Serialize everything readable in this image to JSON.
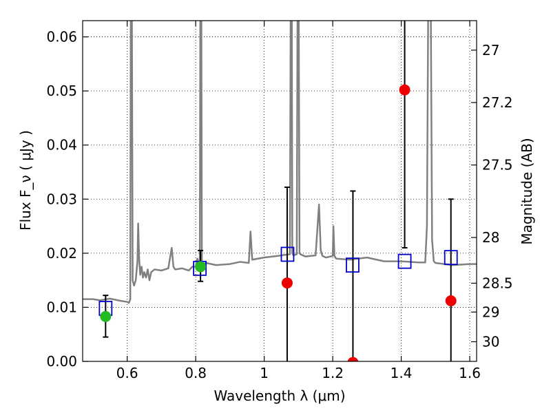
{
  "chart_data": {
    "type": "scatter",
    "xlabel": "Wavelength  λ (μm)",
    "ylabel": "Flux  F_ν  ( μJy )",
    "y2label": "Magnitude (AB)",
    "xlim": [
      0.47,
      1.62
    ],
    "ylim": [
      0.0,
      0.063
    ],
    "grid": true,
    "x_ticks": [
      0.6,
      0.8,
      1.0,
      1.2,
      1.4,
      1.6
    ],
    "x_tick_labels": [
      "0.6",
      "0.8",
      "1",
      "1.2",
      "1.4",
      "1.6"
    ],
    "y_ticks": [
      0.0,
      0.01,
      0.02,
      0.03,
      0.04,
      0.05,
      0.06
    ],
    "y_tick_labels": [
      "0.00",
      "0.01",
      "0.02",
      "0.03",
      "0.04",
      "0.05",
      "0.06"
    ],
    "y2_ticks": [
      27,
      27.2,
      27.5,
      28,
      28.5,
      29,
      30
    ],
    "y2_tick_labels": [
      "27",
      "27.2",
      "27.5",
      "28",
      "28.5",
      "29",
      "30"
    ],
    "colors": {
      "spectrum": "#808080",
      "model_flux": "#0000cc",
      "detection": "#22bb22",
      "non_detection": "#ee0000",
      "errorbar": "#000000"
    },
    "spectrum": {
      "x": [
        0.47,
        0.5,
        0.52,
        0.55,
        0.58,
        0.6,
        0.605,
        0.609,
        0.611,
        0.613,
        0.616,
        0.62,
        0.625,
        0.63,
        0.632,
        0.635,
        0.638,
        0.642,
        0.646,
        0.65,
        0.655,
        0.66,
        0.665,
        0.67,
        0.68,
        0.7,
        0.72,
        0.73,
        0.735,
        0.74,
        0.76,
        0.78,
        0.79,
        0.8,
        0.805,
        0.812,
        0.814,
        0.816,
        0.818,
        0.82,
        0.822,
        0.83,
        0.86,
        0.9,
        0.93,
        0.955,
        0.96,
        0.965,
        1.0,
        1.04,
        1.06,
        1.075,
        1.078,
        1.08,
        1.082,
        1.085,
        1.095,
        1.098,
        1.1,
        1.103,
        1.106,
        1.12,
        1.15,
        1.16,
        1.165,
        1.17,
        1.18,
        1.2,
        1.202,
        1.205,
        1.21,
        1.25,
        1.3,
        1.35,
        1.4,
        1.45,
        1.47,
        1.475,
        1.48,
        1.485,
        1.49,
        1.495,
        1.5,
        1.55,
        1.6,
        1.62
      ],
      "y": [
        0.0115,
        0.0115,
        0.0113,
        0.0116,
        0.0112,
        0.011,
        0.0108,
        0.0115,
        0.08,
        0.08,
        0.015,
        0.014,
        0.015,
        0.0185,
        0.0255,
        0.019,
        0.016,
        0.0175,
        0.0155,
        0.0165,
        0.0155,
        0.017,
        0.015,
        0.0165,
        0.017,
        0.0168,
        0.0172,
        0.021,
        0.0175,
        0.017,
        0.0172,
        0.0168,
        0.0175,
        0.0175,
        0.019,
        0.0175,
        0.08,
        0.08,
        0.018,
        0.0175,
        0.0178,
        0.0182,
        0.0178,
        0.018,
        0.0184,
        0.0182,
        0.024,
        0.0188,
        0.0192,
        0.0195,
        0.0197,
        0.0198,
        0.08,
        0.08,
        0.02,
        0.0196,
        0.0198,
        0.08,
        0.08,
        0.02,
        0.0198,
        0.0194,
        0.0196,
        0.029,
        0.0205,
        0.0195,
        0.0192,
        0.0195,
        0.025,
        0.0195,
        0.019,
        0.0188,
        0.0192,
        0.0185,
        0.0185,
        0.0183,
        0.0183,
        0.025,
        0.08,
        0.08,
        0.0225,
        0.0185,
        0.0182,
        0.0178,
        0.018,
        0.018
      ]
    },
    "model_flux": [
      {
        "x": 0.537,
        "y": 0.0098
      },
      {
        "x": 0.812,
        "y": 0.0172
      },
      {
        "x": 1.068,
        "y": 0.0198
      },
      {
        "x": 1.258,
        "y": 0.0178
      },
      {
        "x": 1.41,
        "y": 0.0185
      },
      {
        "x": 1.545,
        "y": 0.0192
      }
    ],
    "observed": [
      {
        "x": 0.537,
        "y": 0.0083,
        "err_lo": 0.0045,
        "err_hi": 0.0122,
        "detected": true
      },
      {
        "x": 0.814,
        "y": 0.0175,
        "err_lo": 0.0148,
        "err_hi": 0.0205,
        "detected": true
      },
      {
        "x": 1.067,
        "y": 0.0145,
        "err_lo": 0.0,
        "err_hi": 0.0322,
        "detected": false
      },
      {
        "x": 1.259,
        "y": -0.0002,
        "err_lo": 0.0,
        "err_hi": 0.0315,
        "detected": false
      },
      {
        "x": 1.41,
        "y": 0.0502,
        "err_lo": 0.021,
        "err_hi": 0.08,
        "detected": false
      },
      {
        "x": 1.545,
        "y": 0.0112,
        "err_lo": 0.0,
        "err_hi": 0.03,
        "detected": false
      }
    ]
  }
}
